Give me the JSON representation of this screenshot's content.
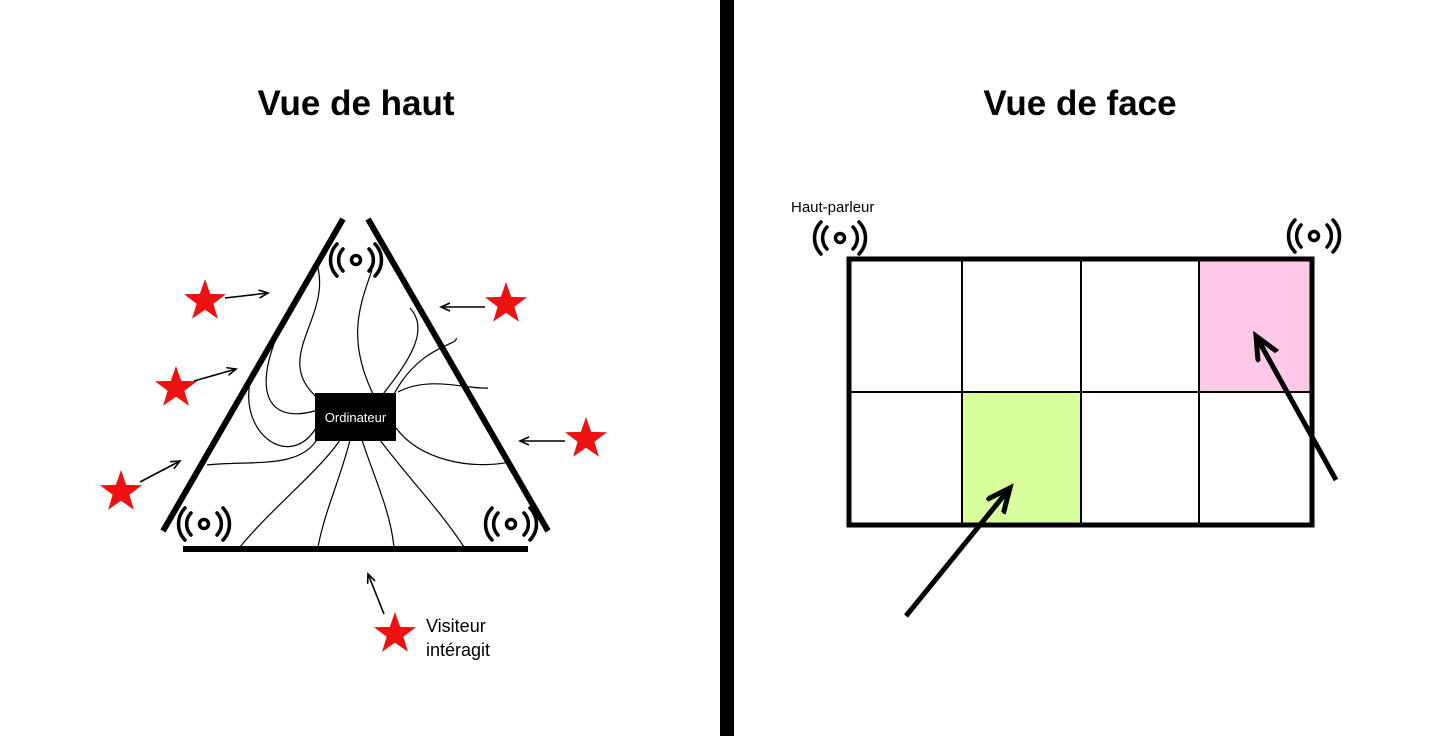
{
  "left_panel": {
    "title": "Vue de haut",
    "computer_label": "Ordinateur",
    "legend_text_line1": "Visiteur",
    "legend_text_line2": "intéragit"
  },
  "right_panel": {
    "title": "Vue de face",
    "speaker_label": "Haut-parleur",
    "grid": {
      "rows": 2,
      "cols": 4
    },
    "highlighted_cells": [
      {
        "row": 0,
        "col": 3,
        "color": "#ffc8e8"
      },
      {
        "row": 1,
        "col": 1,
        "color": "#d8ff9c"
      }
    ]
  },
  "colors": {
    "star": "#ee1111",
    "divider": "#000000",
    "pink_cell": "#ffc8e8",
    "green_cell": "#d8ff9c"
  },
  "icons": {
    "speaker": "speaker-waves-icon",
    "visitor": "star-icon",
    "arrow": "arrow-icon"
  }
}
